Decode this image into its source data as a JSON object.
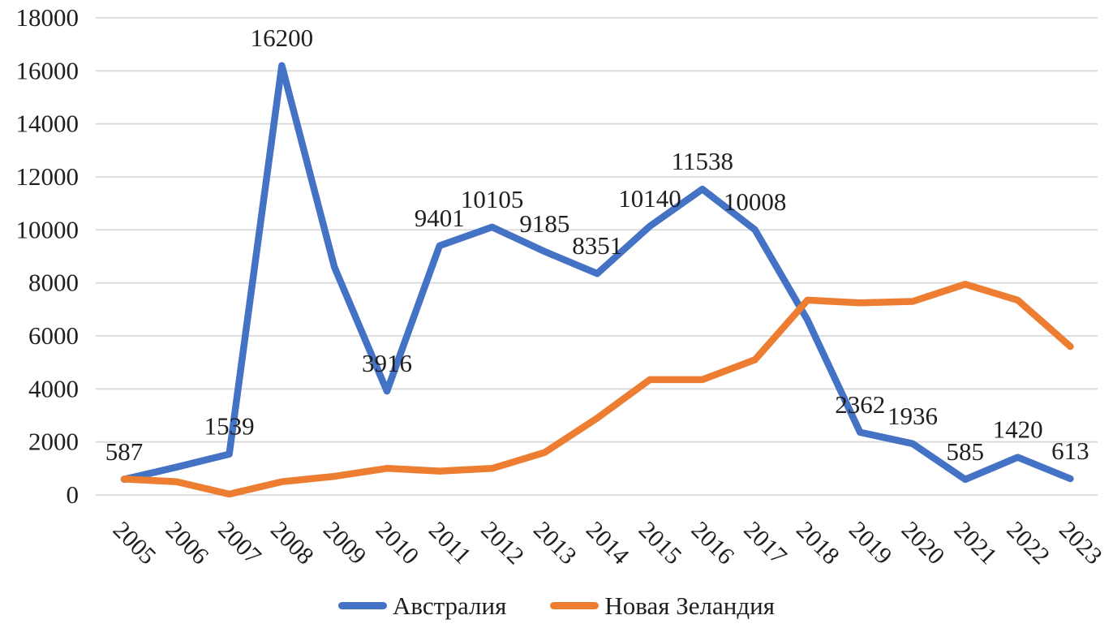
{
  "chart_data": {
    "type": "line",
    "title": "",
    "xlabel": "",
    "ylabel": "",
    "categories": [
      2005,
      2006,
      2007,
      2008,
      2009,
      2010,
      2011,
      2012,
      2013,
      2014,
      2015,
      2016,
      2017,
      2018,
      2019,
      2020,
      2021,
      2022,
      2023
    ],
    "series": [
      {
        "name": "Австралия",
        "color": "#4472C4",
        "values": [
          587,
          1050,
          1539,
          16200,
          8600,
          3916,
          9401,
          10105,
          9185,
          8351,
          10140,
          11538,
          10008,
          6600,
          2362,
          1936,
          585,
          1420,
          613
        ],
        "data_labels": [
          "587",
          null,
          "1539",
          "16200",
          null,
          "3916",
          "9401",
          "10105",
          "9185",
          "8351",
          "10140",
          "11538",
          "10008",
          null,
          "2362",
          "1936",
          "585",
          "1420",
          "613"
        ]
      },
      {
        "name": "Новая Зеландия",
        "color": "#ED7D31",
        "values": [
          600,
          500,
          30,
          500,
          700,
          1000,
          900,
          1000,
          1600,
          2900,
          4350,
          4350,
          5100,
          7350,
          7250,
          7300,
          7950,
          7350,
          5600
        ],
        "data_labels": null
      }
    ],
    "y_ticks": [
      0,
      2000,
      4000,
      6000,
      8000,
      10000,
      12000,
      14000,
      16000,
      18000
    ],
    "ylim": [
      0,
      18000
    ],
    "grid": "horizontal",
    "gridline_color": "#D9D9D9",
    "legend_position": "bottom"
  },
  "legend": {
    "items": [
      {
        "label": "Австралия",
        "color": "#4472C4"
      },
      {
        "label": "Новая Зеландия",
        "color": "#ED7D31"
      }
    ]
  }
}
